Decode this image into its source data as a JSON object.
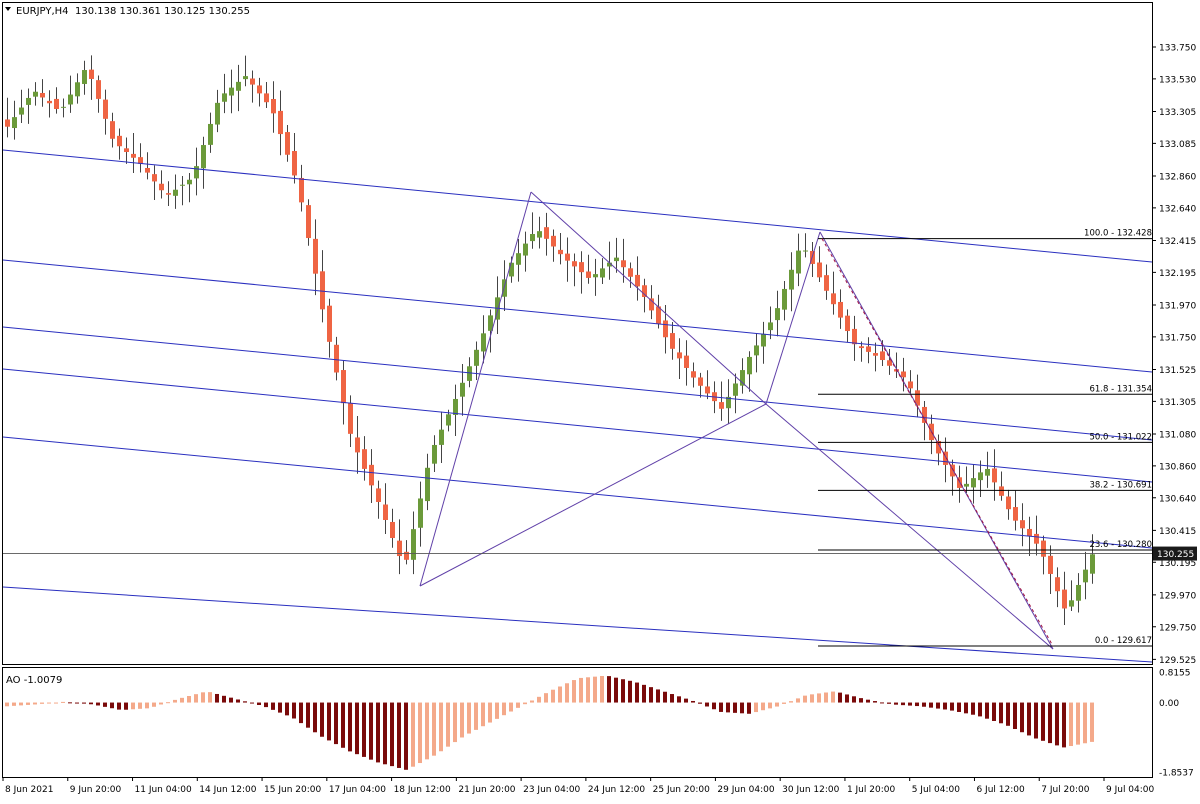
{
  "header": {
    "symbol": "EURJPY,H4",
    "ohlc": "130.138 130.361 130.125 130.255"
  },
  "indicator": {
    "label": "AO -1.0079",
    "scale": [
      "0.8155",
      "0.00",
      "-1.8537"
    ]
  },
  "colors": {
    "bull": "#6b9a3a",
    "bear": "#ef6443",
    "channel": "#2a2fbf",
    "zigzag": "#6040a8",
    "fib_line": "#000000",
    "fib_diag": "#a01040",
    "ao_dark": "#7a0a0a",
    "ao_light": "#f4a98a",
    "axis": "#000000"
  },
  "chart_data": [
    {
      "type": "candlestick",
      "title": "EURJPY,H4",
      "ylim": [
        129.5,
        133.95
      ],
      "y_ticks": [
        129.525,
        129.75,
        129.97,
        130.195,
        130.415,
        130.64,
        130.86,
        131.08,
        131.305,
        131.525,
        131.75,
        131.97,
        132.195,
        132.415,
        132.64,
        132.86,
        133.085,
        133.305,
        133.53,
        133.75
      ],
      "x_labels": [
        "8 Jun 2021",
        "9 Jun 20:00",
        "11 Jun 04:00",
        "14 Jun 12:00",
        "15 Jun 20:00",
        "17 Jun 04:00",
        "18 Jun 12:00",
        "21 Jun 20:00",
        "23 Jun 04:00",
        "24 Jun 12:00",
        "25 Jun 20:00",
        "29 Jun 04:00",
        "30 Jun 12:00",
        "1 Jul 20:00",
        "5 Jul 04:00",
        "6 Jul 12:00",
        "7 Jul 20:00",
        "9 Jul 04:00"
      ],
      "current_price": 130.255,
      "current_price_label": "130.255",
      "waypoints": [
        133.2,
        133.45,
        133.3,
        133.62,
        133.1,
        132.95,
        132.72,
        132.85,
        133.4,
        133.55,
        133.32,
        132.78,
        131.85,
        131.05,
        130.62,
        130.15,
        130.95,
        131.35,
        131.78,
        132.25,
        132.5,
        132.3,
        132.15,
        132.3,
        132.05,
        131.7,
        131.45,
        131.25,
        131.6,
        131.9,
        132.4,
        132.05,
        131.7,
        131.6,
        131.45,
        131.0,
        130.7,
        130.85,
        130.5,
        130.3,
        129.85,
        130.25
      ]
    },
    {
      "type": "fibonacci",
      "levels": [
        {
          "label": "100.0 - 132.428",
          "value": 132.428
        },
        {
          "label": "61.8 - 131.354",
          "value": 131.354
        },
        {
          "label": "50.0 - 131.022",
          "value": 131.022
        },
        {
          "label": "38.2 - 130.691",
          "value": 130.691
        },
        {
          "label": "23.6 - 130.280",
          "value": 130.28
        },
        {
          "label": "0.0 - 129.617",
          "value": 129.617
        }
      ]
    },
    {
      "type": "bar",
      "title": "AO -1.0079",
      "ylim": [
        -1.8537,
        0.8155
      ],
      "y_ticks": [
        0.8155,
        0.0,
        -1.8537
      ],
      "waypoints": [
        -0.1,
        -0.05,
        0.02,
        -0.05,
        -0.2,
        -0.15,
        0.1,
        0.3,
        0.1,
        -0.1,
        -0.4,
        -0.9,
        -1.3,
        -1.6,
        -1.8,
        -1.4,
        -0.9,
        -0.5,
        -0.1,
        0.3,
        0.65,
        0.72,
        0.55,
        0.3,
        0.05,
        -0.25,
        -0.3,
        -0.1,
        0.2,
        0.3,
        0.1,
        -0.05,
        -0.1,
        -0.2,
        -0.35,
        -0.6,
        -0.95,
        -1.2,
        -1.05
      ]
    }
  ]
}
